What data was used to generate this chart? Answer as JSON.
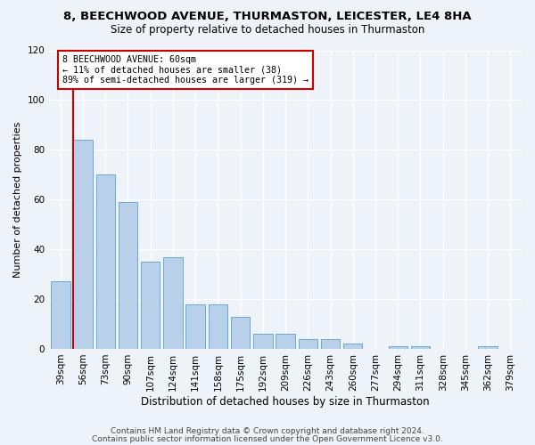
{
  "title1": "8, BEECHWOOD AVENUE, THURMASTON, LEICESTER, LE4 8HA",
  "title2": "Size of property relative to detached houses in Thurmaston",
  "xlabel": "Distribution of detached houses by size in Thurmaston",
  "ylabel": "Number of detached properties",
  "categories": [
    "39sqm",
    "56sqm",
    "73sqm",
    "90sqm",
    "107sqm",
    "124sqm",
    "141sqm",
    "158sqm",
    "175sqm",
    "192sqm",
    "209sqm",
    "226sqm",
    "243sqm",
    "260sqm",
    "277sqm",
    "294sqm",
    "311sqm",
    "328sqm",
    "345sqm",
    "362sqm",
    "379sqm"
  ],
  "values": [
    27,
    84,
    70,
    59,
    35,
    37,
    18,
    18,
    13,
    6,
    6,
    4,
    4,
    2,
    0,
    1,
    1,
    0,
    0,
    1,
    0
  ],
  "bar_color": "#b8d0ea",
  "bar_edge_color": "#6aaad4",
  "highlight_bar_index": 1,
  "vline_color": "#cc0000",
  "annotation_text": "8 BEECHWOOD AVENUE: 60sqm\n← 11% of detached houses are smaller (38)\n89% of semi-detached houses are larger (319) →",
  "annotation_box_color": "#ffffff",
  "annotation_box_edge_color": "#cc0000",
  "ylim": [
    0,
    120
  ],
  "yticks": [
    0,
    20,
    40,
    60,
    80,
    100,
    120
  ],
  "footer1": "Contains HM Land Registry data © Crown copyright and database right 2024.",
  "footer2": "Contains public sector information licensed under the Open Government Licence v3.0.",
  "bg_color": "#eef2f9",
  "plot_bg_color": "#eef2f9",
  "grid_color": "#ffffff",
  "title1_fontsize": 9.5,
  "title2_fontsize": 8.5,
  "xlabel_fontsize": 8.5,
  "ylabel_fontsize": 8,
  "tick_fontsize": 7.5,
  "footer_fontsize": 6.5
}
